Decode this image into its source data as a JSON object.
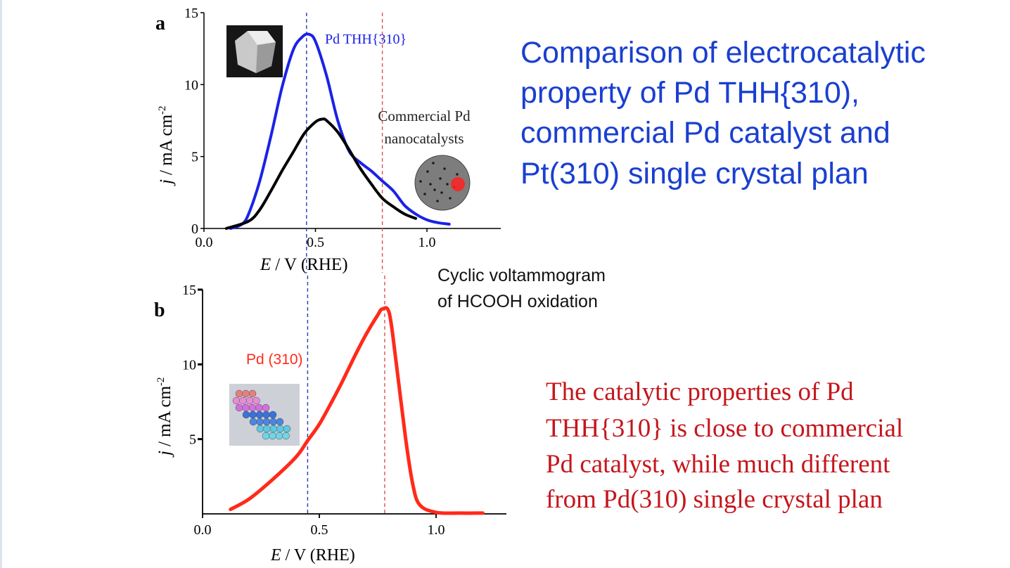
{
  "title": {
    "lines": [
      "Comparison of electrocatalytic",
      "property of Pd THH{310),",
      "commercial Pd catalyst and",
      "Pt(310) single crystal plan"
    ]
  },
  "cv_label": {
    "lines": [
      "Cyclic voltammogram",
      "of HCOOH oxidation"
    ]
  },
  "conclusion": {
    "lines": [
      "The catalytic properties of Pd",
      "THH{310} is close to commercial",
      "Pd catalyst, while much different",
      "from Pd(310) single crystal plan"
    ]
  },
  "colors": {
    "title": "#1a3fd0",
    "conclusion": "#c4161c",
    "pd_thh": "#1a22e6",
    "commercial": "#000000",
    "pd310": "#ff2a1a",
    "guide_blue": "#2a3ab8",
    "guide_red": "#e05050"
  },
  "icons": {
    "panel_a_inset_1": "thh-nanocrystal-micrograph-icon",
    "panel_a_inset_2": "commercial-nanoparticle-micrograph-icon",
    "panel_b_inset": "crystal-lattice-model-icon"
  },
  "chart_data": [
    {
      "type": "line",
      "panel_label": "a",
      "xlabel_symbol": "E",
      "xlabel_unit": "/ V  (RHE)",
      "ylabel_symbol": "j",
      "ylabel_unit": "/ mA cm",
      "ylabel_sup": "-2",
      "xlim": [
        0,
        1.3
      ],
      "ylim": [
        0,
        15
      ],
      "xticks": [
        0,
        0.5,
        1.0
      ],
      "xtick_labels": [
        "0.0",
        "0.5",
        "1.0"
      ],
      "yticks": [
        0,
        5,
        10,
        15
      ],
      "ytick_labels": [
        "0",
        "5",
        "10",
        "15"
      ],
      "guide_lines_x": [
        0.46,
        0.8
      ],
      "annotations": [
        {
          "text": "Pd THH{310}",
          "series": 0
        },
        {
          "text": "Commercial Pd",
          "series": 1
        },
        {
          "text": "nanocatalysts",
          "series": 1
        }
      ],
      "series": [
        {
          "x": [
            0.12,
            0.17,
            0.2,
            0.25,
            0.3,
            0.35,
            0.4,
            0.44,
            0.47,
            0.5,
            0.55,
            0.6,
            0.65,
            0.7,
            0.75,
            0.8,
            0.85,
            0.9,
            0.95,
            1.0,
            1.05,
            1.1
          ],
          "y": [
            0.0,
            0.3,
            1.0,
            3.3,
            6.4,
            9.8,
            12.4,
            13.3,
            13.5,
            13.0,
            10.6,
            7.5,
            5.4,
            4.6,
            4.0,
            3.3,
            2.6,
            1.6,
            1.0,
            0.6,
            0.4,
            0.3
          ]
        },
        {
          "x": [
            0.1,
            0.2,
            0.25,
            0.3,
            0.35,
            0.4,
            0.45,
            0.5,
            0.53,
            0.55,
            0.6,
            0.65,
            0.7,
            0.75,
            0.8,
            0.85,
            0.9,
            0.95
          ],
          "y": [
            0.0,
            0.5,
            1.3,
            2.6,
            4.0,
            5.3,
            6.6,
            7.4,
            7.6,
            7.5,
            6.7,
            5.5,
            4.2,
            3.1,
            2.1,
            1.5,
            1.0,
            0.7
          ]
        }
      ]
    },
    {
      "type": "line",
      "panel_label": "b",
      "xlabel_symbol": "E",
      "xlabel_unit": "/ V (RHE)",
      "ylabel_symbol": "j",
      "ylabel_unit": "/ mA cm",
      "ylabel_sup": "-2",
      "xlim": [
        0,
        1.3
      ],
      "ylim": [
        0,
        15
      ],
      "xticks": [
        0,
        0.5,
        1.0
      ],
      "xtick_labels": [
        "0.0",
        "0.5",
        "1.0"
      ],
      "yticks": [
        5,
        10,
        15
      ],
      "ytick_labels": [
        "5",
        "10",
        "15"
      ],
      "guide_lines_x": [
        0.45,
        0.78
      ],
      "annotations": [
        {
          "text": "Pd (310)",
          "series": 0
        }
      ],
      "series": [
        {
          "x": [
            0.12,
            0.2,
            0.3,
            0.4,
            0.45,
            0.5,
            0.55,
            0.6,
            0.65,
            0.7,
            0.75,
            0.77,
            0.8,
            0.83,
            0.87,
            0.9,
            0.93,
            1.0,
            1.1,
            1.2
          ],
          "y": [
            0.3,
            1.0,
            2.3,
            3.8,
            4.9,
            6.0,
            7.4,
            8.9,
            10.5,
            12.0,
            13.3,
            13.7,
            13.4,
            10.0,
            5.0,
            2.0,
            0.6,
            0.1,
            0.05,
            0.05
          ]
        }
      ]
    }
  ]
}
